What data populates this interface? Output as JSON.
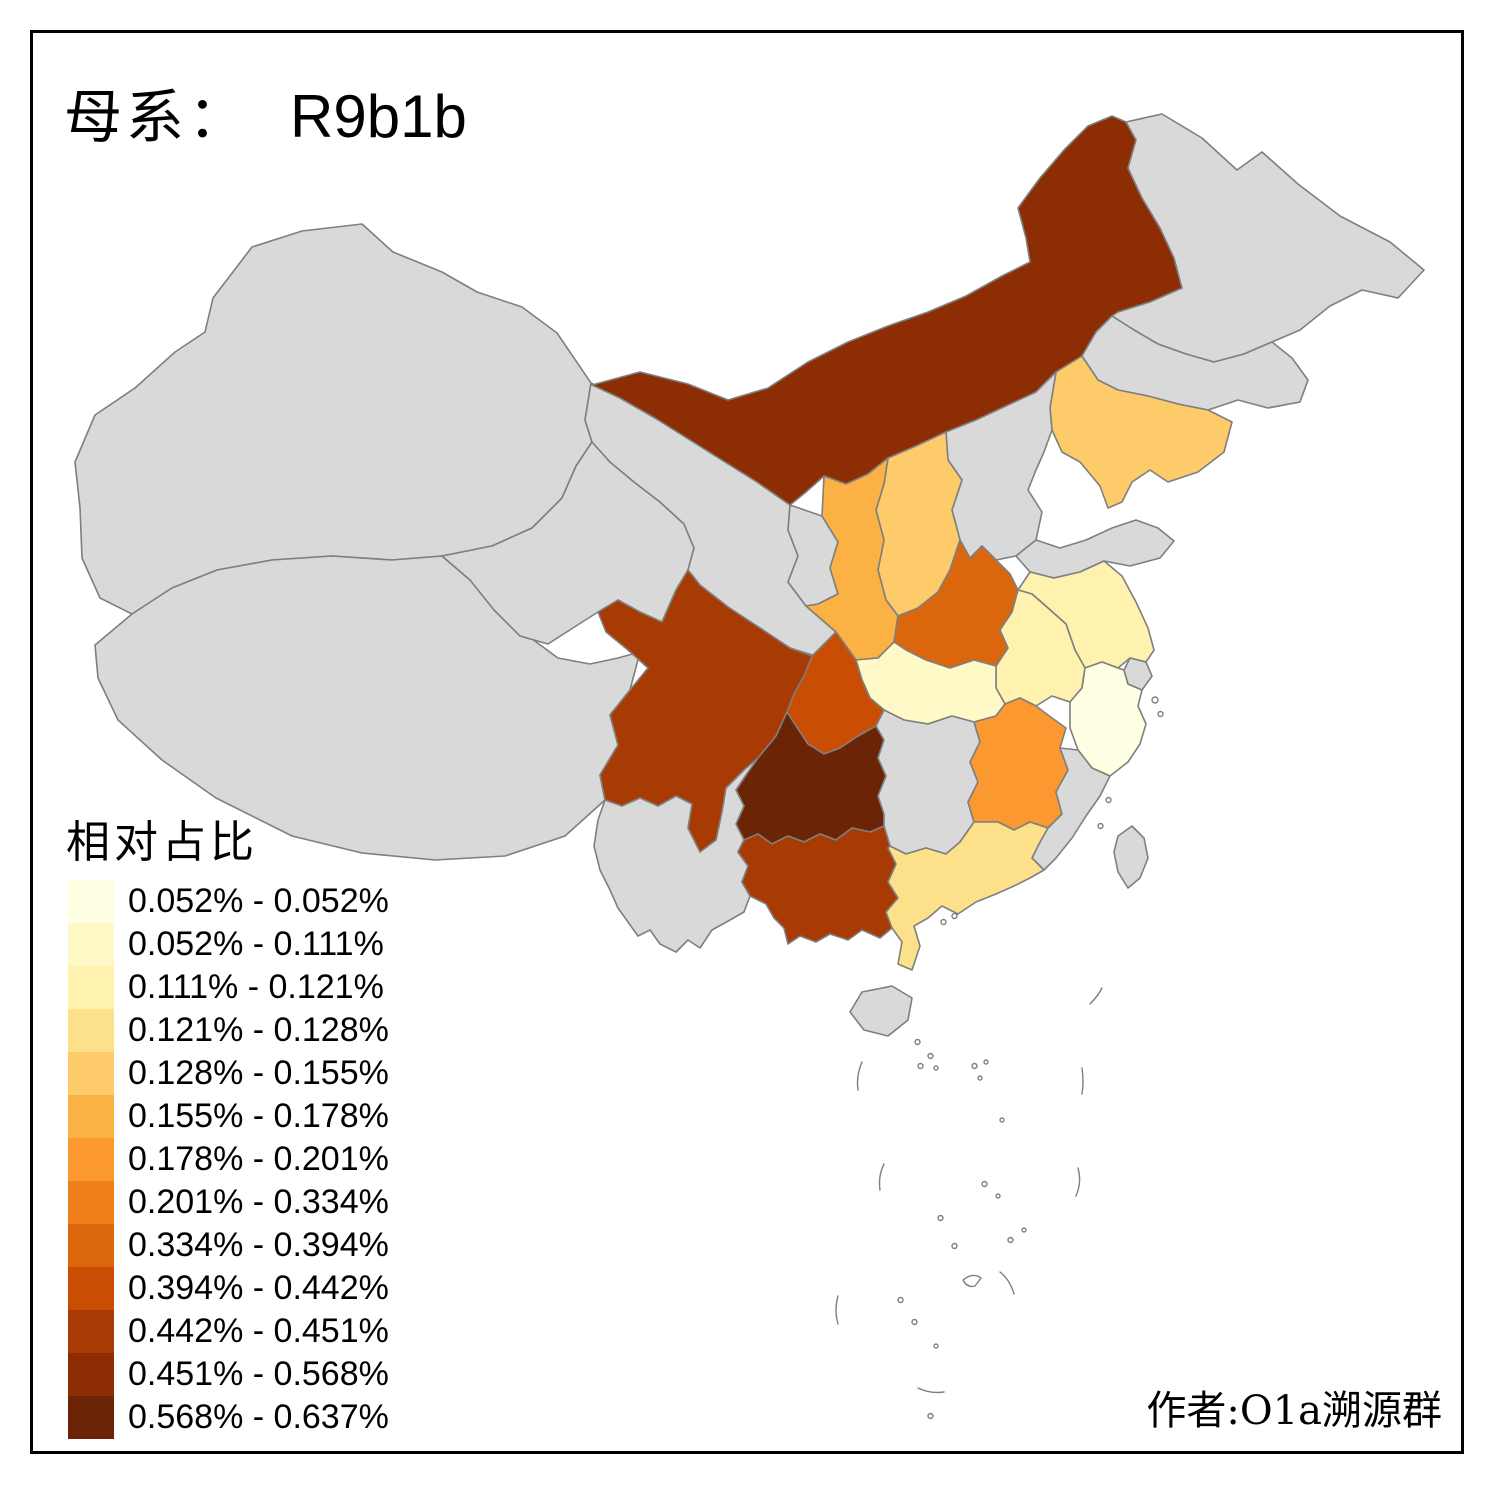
{
  "title": {
    "prefix": "母系：",
    "haplogroup": "R9b1b"
  },
  "legend": {
    "title": "相对占比",
    "items": [
      {
        "label": "0.052% - 0.052%",
        "color": "#FFFFE3"
      },
      {
        "label": "0.052% - 0.111%",
        "color": "#FFF9C7"
      },
      {
        "label": "0.111% - 0.121%",
        "color": "#FFF1AE"
      },
      {
        "label": "0.121% - 0.128%",
        "color": "#FDE18A"
      },
      {
        "label": "0.128% - 0.155%",
        "color": "#FDCB69"
      },
      {
        "label": "0.155% - 0.178%",
        "color": "#FBB143"
      },
      {
        "label": "0.178% - 0.201%",
        "color": "#FB9830"
      },
      {
        "label": "0.201% - 0.334%",
        "color": "#F0801C"
      },
      {
        "label": "0.334% - 0.394%",
        "color": "#DC660C"
      },
      {
        "label": "0.394% - 0.442%",
        "color": "#C94E04"
      },
      {
        "label": "0.442% - 0.451%",
        "color": "#A83A03"
      },
      {
        "label": "0.451% - 0.568%",
        "color": "#8C2D04"
      },
      {
        "label": "0.568% - 0.637%",
        "color": "#6B2506"
      }
    ]
  },
  "attribution": "作者:O1a溯源群",
  "chart_data": {
    "type": "heatmap",
    "title": "母系： R9b1b",
    "legend_title": "相对占比",
    "unit": "%",
    "bins": [
      "0.052-0.052",
      "0.052-0.111",
      "0.111-0.121",
      "0.121-0.128",
      "0.128-0.155",
      "0.155-0.178",
      "0.178-0.201",
      "0.201-0.334",
      "0.334-0.394",
      "0.394-0.442",
      "0.442-0.451",
      "0.451-0.568",
      "0.568-0.637"
    ],
    "regions_by_bin": {
      "1": [
        "zhejiang"
      ],
      "2": [
        "hubei"
      ],
      "3": [
        "anhui",
        "jiangsu"
      ],
      "4": [
        "guangdong"
      ],
      "5": [
        "liaoning",
        "shanxi"
      ],
      "6": [
        "shaanxi"
      ],
      "7": [
        "jiangxi"
      ],
      "8": [
        "beijing"
      ],
      "9": [
        "henan"
      ],
      "10": [
        "chongqing"
      ],
      "11": [
        "sichuan",
        "guangxi"
      ],
      "12": [
        "neimenggu"
      ],
      "13": [
        "guizhou"
      ]
    },
    "no_data_regions": [
      "xinjiang",
      "xizang",
      "qinghai",
      "gansu",
      "ningxia",
      "yunnan",
      "hunan",
      "hebei",
      "tianjin",
      "shandong",
      "shanghai",
      "fujian",
      "hainan",
      "taiwan",
      "heilongjiang",
      "jilin"
    ]
  },
  "map": {
    "background": "#FFFFFF",
    "border_color": "#000000",
    "province_stroke": "#7F7F7F",
    "no_data_color": "#D9D9D9",
    "provinces": {
      "xinjiang": {
        "bin": 0
      },
      "xizang": {
        "bin": 0
      },
      "qinghai": {
        "bin": 0
      },
      "gansu": {
        "bin": 0
      },
      "ningxia": {
        "bin": 0
      },
      "neimenggu": {
        "bin": 12
      },
      "heilongjiang": {
        "bin": 0
      },
      "jilin": {
        "bin": 0
      },
      "liaoning": {
        "bin": 5
      },
      "hebei": {
        "bin": 0
      },
      "beijing": {
        "bin": 8
      },
      "tianjin": {
        "bin": 0
      },
      "shanxi": {
        "bin": 5
      },
      "shaanxi": {
        "bin": 6
      },
      "shandong": {
        "bin": 0
      },
      "henan": {
        "bin": 9
      },
      "jiangsu": {
        "bin": 3
      },
      "anhui": {
        "bin": 3
      },
      "shanghai": {
        "bin": 0
      },
      "hubei": {
        "bin": 2
      },
      "zhejiang": {
        "bin": 1
      },
      "chongqing": {
        "bin": 10
      },
      "sichuan": {
        "bin": 11
      },
      "guizhou": {
        "bin": 13
      },
      "hunan": {
        "bin": 0
      },
      "jiangxi": {
        "bin": 7
      },
      "fujian": {
        "bin": 0
      },
      "yunnan": {
        "bin": 0
      },
      "guangxi": {
        "bin": 11
      },
      "guangdong": {
        "bin": 4
      },
      "hainan": {
        "bin": 0
      },
      "taiwan": {
        "bin": 0
      }
    }
  }
}
